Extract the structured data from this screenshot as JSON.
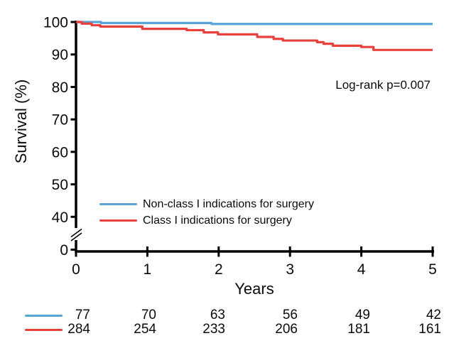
{
  "chart_data": {
    "type": "line",
    "variant": "kaplan_meier_step",
    "title": "",
    "xlabel": "Years",
    "ylabel": "Survival (%)",
    "x_ticks": [
      0,
      1,
      2,
      3,
      4,
      5
    ],
    "y_ticks": [
      100,
      90,
      80,
      70,
      60,
      50,
      40,
      0
    ],
    "y_axis_break_between": [
      40,
      0
    ],
    "xlim": [
      0,
      5
    ],
    "ylim_main": [
      40,
      100
    ],
    "grid": false,
    "annotation": "Log-rank p=0.007",
    "legend_position": "inside-lower-left",
    "series": [
      {
        "name": "Non-class I indications for surgery",
        "color": "#5AA5D7",
        "points": [
          [
            0,
            100
          ],
          [
            0.35,
            99.7
          ],
          [
            1.9,
            99.4
          ],
          [
            5,
            99.4
          ]
        ]
      },
      {
        "name": "Class I indications for surgery",
        "color": "#E6413C",
        "points": [
          [
            0,
            100
          ],
          [
            0.08,
            99.5
          ],
          [
            0.22,
            99.0
          ],
          [
            0.34,
            98.6
          ],
          [
            0.93,
            97.9
          ],
          [
            1.55,
            97.5
          ],
          [
            1.79,
            96.8
          ],
          [
            1.99,
            96.2
          ],
          [
            2.54,
            95.4
          ],
          [
            2.77,
            94.8
          ],
          [
            2.9,
            94.3
          ],
          [
            3.38,
            93.8
          ],
          [
            3.47,
            93.3
          ],
          [
            3.6,
            92.7
          ],
          [
            4.0,
            92.3
          ],
          [
            4.17,
            91.4
          ],
          [
            5,
            91.4
          ]
        ]
      }
    ],
    "numbers_at_risk": {
      "time_points": [
        0,
        1,
        2,
        3,
        4,
        5
      ],
      "rows": [
        {
          "series": "Non-class I indications for surgery",
          "color": "#5AA5D7",
          "counts": [
            "77",
            "70",
            "63",
            "56",
            "49",
            "42"
          ]
        },
        {
          "series": "Class I indications for surgery",
          "color": "#E6413C",
          "counts": [
            "284",
            "254",
            "233",
            "206",
            "181",
            "161"
          ]
        }
      ]
    }
  },
  "colors": {
    "axis": "#000000",
    "text": "#0a0a0a",
    "background": "#ffffff",
    "blue": "#5AA5D7",
    "red": "#E6413C"
  }
}
